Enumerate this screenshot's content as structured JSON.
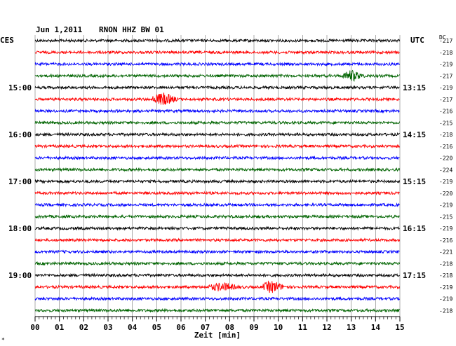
{
  "header": {
    "date": "Jun 1,2011",
    "station": "RNON HHZ BW 01",
    "left_tz": "CES",
    "right_tz": "UTC",
    "dc_header": "DC"
  },
  "colors": {
    "trace_cycle": [
      "#000000",
      "#ff0000",
      "#0000ff",
      "#006400"
    ],
    "grid": "#000000",
    "background": "#ffffff"
  },
  "chart_data": {
    "type": "line",
    "title": "Jun 1,2011   RNON HHZ BW 01",
    "xlabel": "Zeit [min]",
    "x_ticks": [
      "00",
      "01",
      "02",
      "03",
      "04",
      "05",
      "06",
      "07",
      "08",
      "09",
      "10",
      "11",
      "12",
      "13",
      "14",
      "15"
    ],
    "xlim": [
      0,
      15
    ],
    "row_minutes": 15,
    "left_time_labels": [
      {
        "row": 4,
        "text": "15:00"
      },
      {
        "row": 8,
        "text": "16:00"
      },
      {
        "row": 12,
        "text": "17:00"
      },
      {
        "row": 16,
        "text": "18:00"
      },
      {
        "row": 20,
        "text": "19:00"
      }
    ],
    "right_time_labels": [
      {
        "row": 4,
        "text": "13:15"
      },
      {
        "row": 8,
        "text": "14:15"
      },
      {
        "row": 12,
        "text": "15:15"
      },
      {
        "row": 16,
        "text": "16:15"
      },
      {
        "row": 20,
        "text": "17:15"
      }
    ],
    "dc_offsets": [
      -217,
      -218,
      -219,
      -217,
      -219,
      -217,
      -216,
      -215,
      -218,
      -216,
      -220,
      -224,
      -219,
      -220,
      -219,
      -215,
      -219,
      -216,
      -221,
      -218,
      -218,
      -219,
      -219,
      -218
    ],
    "events": [
      {
        "row": 3,
        "minute": 12.9,
        "duration": 0.8,
        "amplitude": 2.2
      },
      {
        "row": 5,
        "minute": 5.1,
        "duration": 1.0,
        "amplitude": 2.6
      },
      {
        "row": 21,
        "minute": 7.5,
        "duration": 1.2,
        "amplitude": 1.6
      },
      {
        "row": 21,
        "minute": 9.6,
        "duration": 0.9,
        "amplitude": 2.4
      }
    ],
    "grid": true
  },
  "footer": {
    "corner_mark": "*"
  }
}
